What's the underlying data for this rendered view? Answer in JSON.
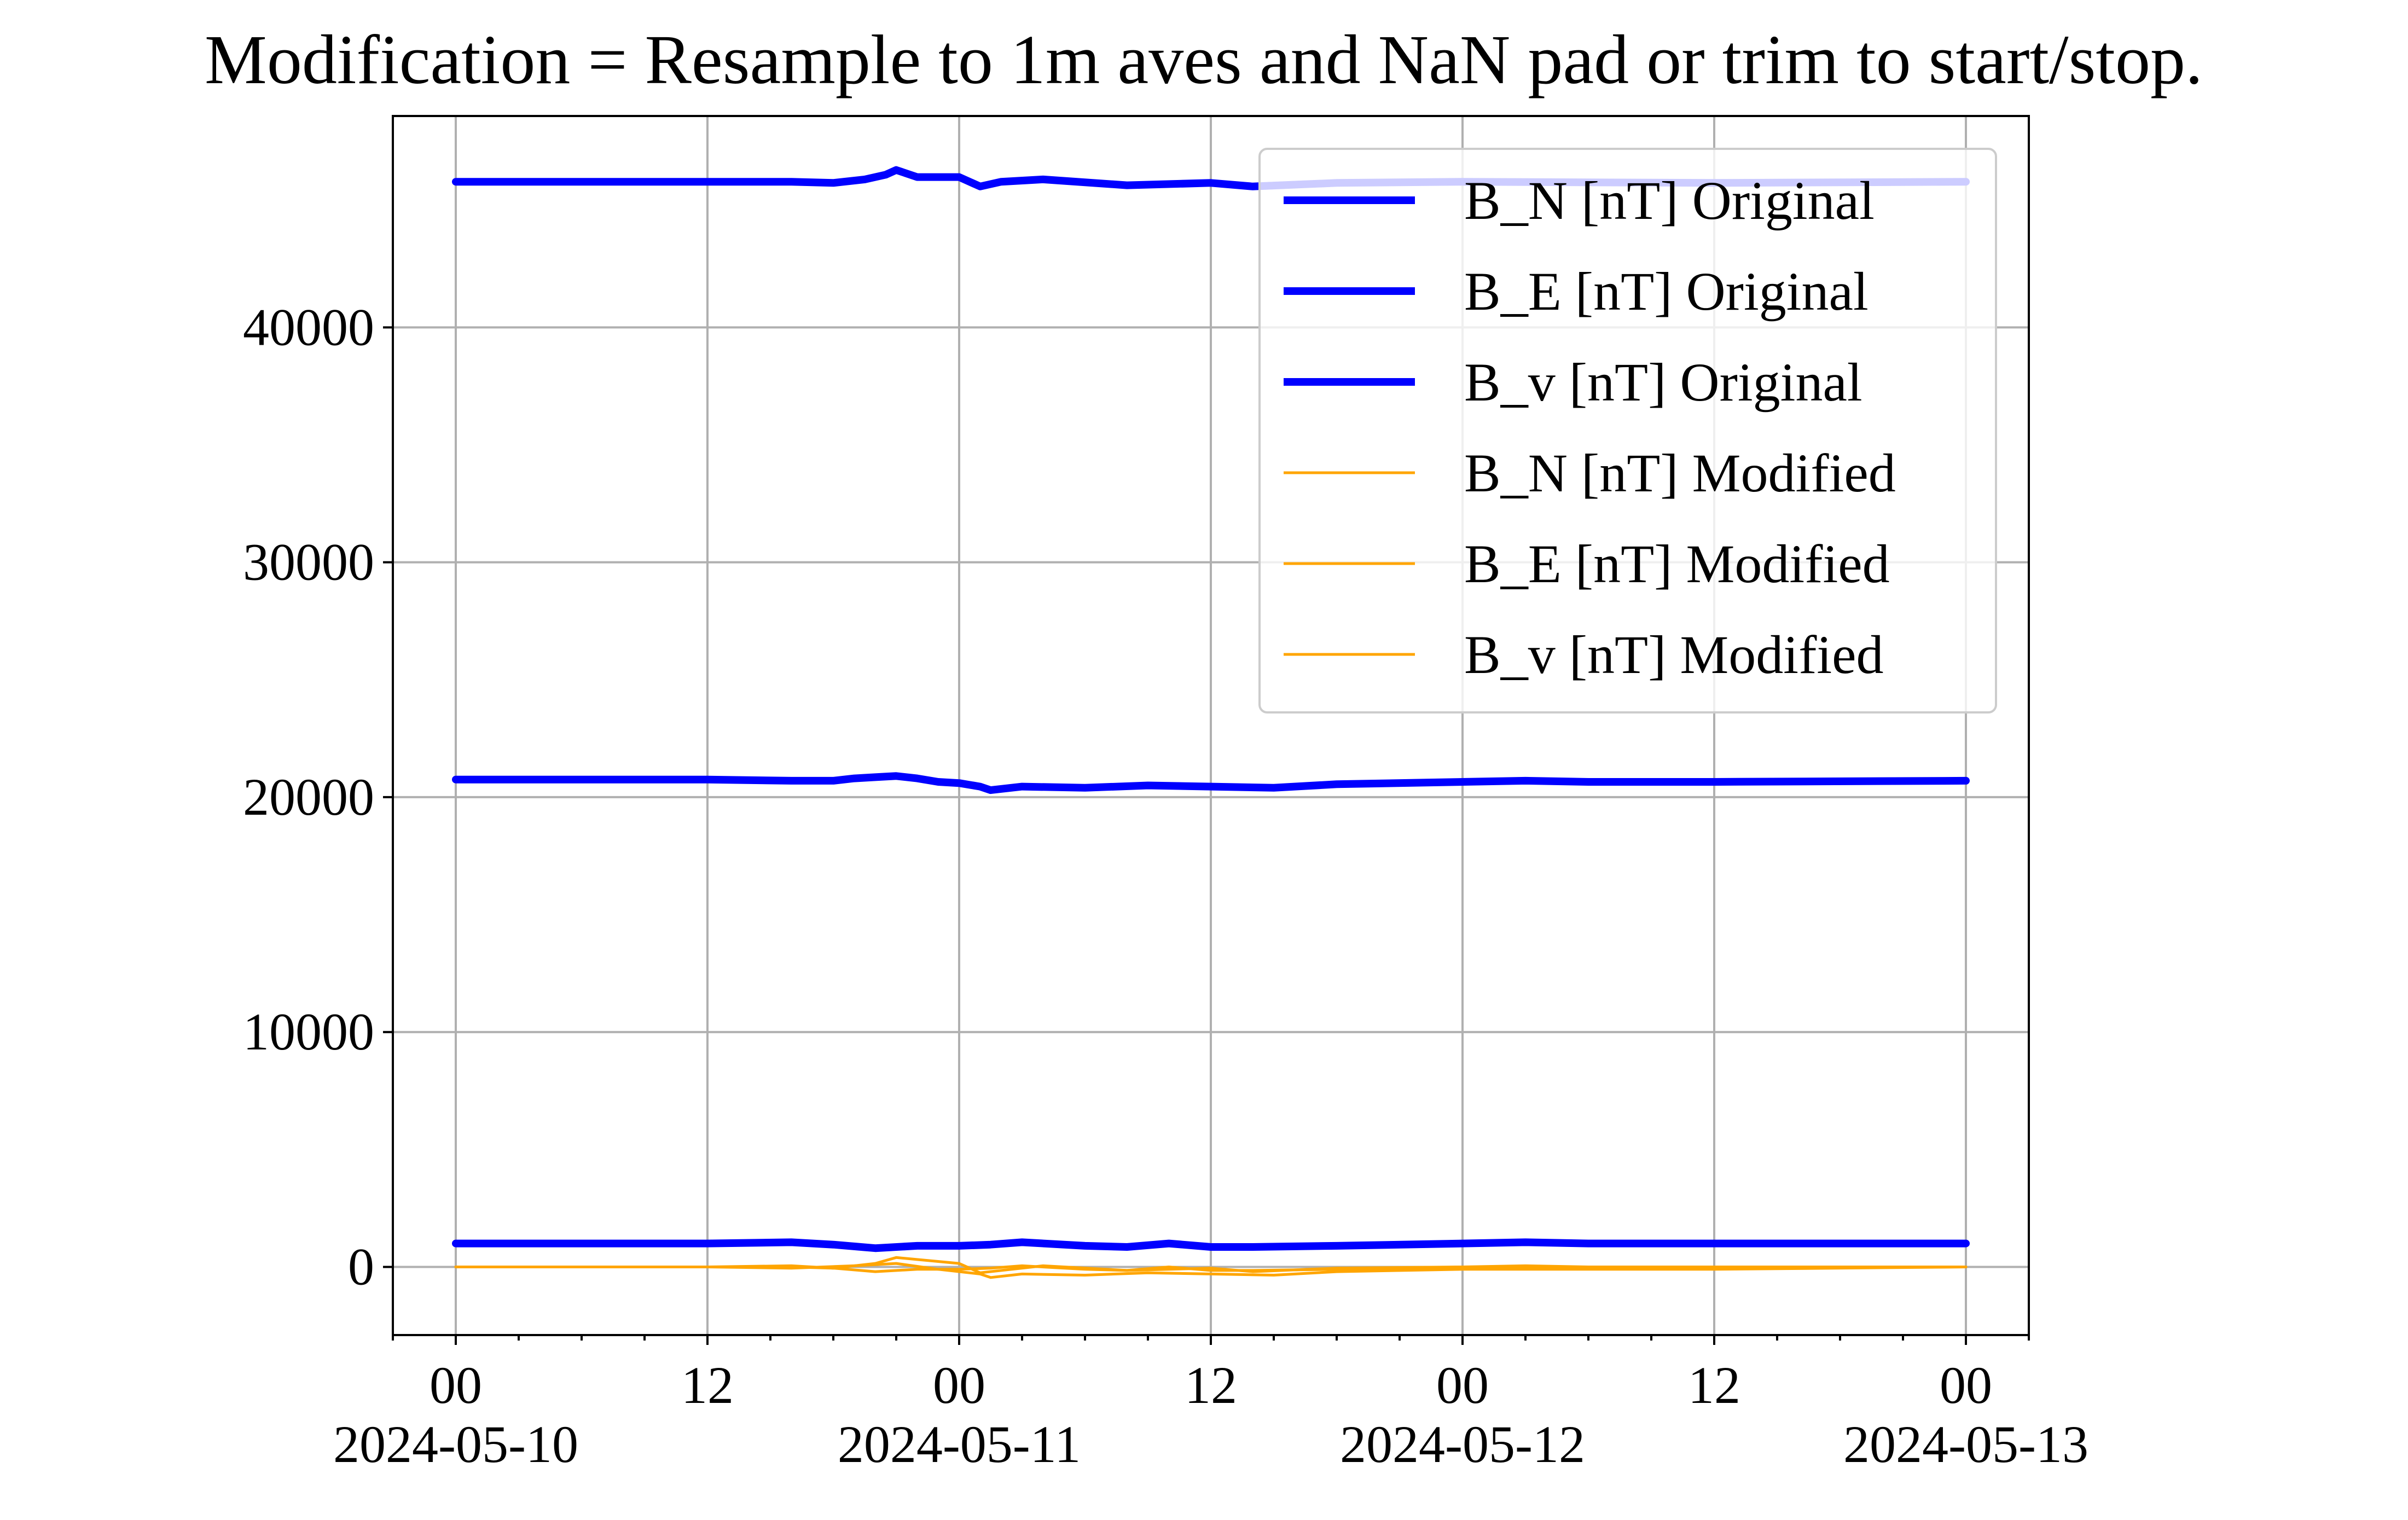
{
  "chart_data": {
    "type": "line",
    "title": "Modification = Resample to 1m aves and NaN pad or trim to start/stop.",
    "xlabel": "",
    "ylabel": "",
    "x_range": [
      "2024-05-09T21:00",
      "2024-05-13T03:00"
    ],
    "ylim": [
      -2900,
      49000
    ],
    "y_ticks": [
      0,
      10000,
      20000,
      30000,
      40000
    ],
    "y_tick_labels": [
      "0",
      "10000",
      "20000",
      "30000",
      "40000"
    ],
    "x_ticks": [
      {
        "t": "2024-05-10T00:00",
        "hour": "00",
        "date": "2024-05-10"
      },
      {
        "t": "2024-05-10T12:00",
        "hour": "12",
        "date": ""
      },
      {
        "t": "2024-05-11T00:00",
        "hour": "00",
        "date": "2024-05-11"
      },
      {
        "t": "2024-05-11T12:00",
        "hour": "12",
        "date": ""
      },
      {
        "t": "2024-05-12T00:00",
        "hour": "00",
        "date": "2024-05-12"
      },
      {
        "t": "2024-05-12T12:00",
        "hour": "12",
        "date": ""
      },
      {
        "t": "2024-05-13T00:00",
        "hour": "00",
        "date": "2024-05-13"
      }
    ],
    "grid": true,
    "legend_position": "top-right",
    "series": [
      {
        "name": "B_N [nT] Original",
        "color": "#0000ff",
        "x": [
          "2024-05-10T00:00",
          "2024-05-10T12:00",
          "2024-05-10T16:00",
          "2024-05-10T18:00",
          "2024-05-10T19:30",
          "2024-05-10T20:30",
          "2024-05-10T21:00",
          "2024-05-10T22:00",
          "2024-05-11T00:00",
          "2024-05-11T01:00",
          "2024-05-11T02:00",
          "2024-05-11T04:00",
          "2024-05-11T08:00",
          "2024-05-11T12:00",
          "2024-05-11T14:00",
          "2024-05-11T18:00",
          "2024-05-12T00:00",
          "2024-05-12T12:00",
          "2024-05-13T00:00"
        ],
        "y": [
          46200,
          46200,
          46200,
          46150,
          46300,
          46500,
          46700,
          46400,
          46400,
          46000,
          46200,
          46300,
          46050,
          46150,
          46000,
          46150,
          46200,
          46150,
          46200
        ]
      },
      {
        "name": "B_E [nT] Original",
        "color": "#0000ff",
        "x": [
          "2024-05-10T00:00",
          "2024-05-10T12:00",
          "2024-05-10T16:00",
          "2024-05-10T18:00",
          "2024-05-10T19:00",
          "2024-05-10T20:00",
          "2024-05-10T21:00",
          "2024-05-10T22:00",
          "2024-05-10T23:00",
          "2024-05-11T00:00",
          "2024-05-11T01:00",
          "2024-05-11T01:30",
          "2024-05-11T03:00",
          "2024-05-11T06:00",
          "2024-05-11T09:00",
          "2024-05-11T12:00",
          "2024-05-11T15:00",
          "2024-05-11T18:00",
          "2024-05-12T00:00",
          "2024-05-12T03:00",
          "2024-05-12T06:00",
          "2024-05-12T12:00",
          "2024-05-13T00:00"
        ],
        "y": [
          20750,
          20750,
          20700,
          20700,
          20800,
          20850,
          20900,
          20800,
          20650,
          20600,
          20450,
          20300,
          20450,
          20400,
          20500,
          20450,
          20400,
          20550,
          20650,
          20700,
          20650,
          20650,
          20700
        ]
      },
      {
        "name": "B_v [nT] Original",
        "color": "#0000ff",
        "x": [
          "2024-05-10T00:00",
          "2024-05-10T12:00",
          "2024-05-10T16:00",
          "2024-05-10T18:00",
          "2024-05-10T20:00",
          "2024-05-10T22:00",
          "2024-05-11T00:00",
          "2024-05-11T01:30",
          "2024-05-11T03:00",
          "2024-05-11T06:00",
          "2024-05-11T08:00",
          "2024-05-11T10:00",
          "2024-05-11T12:00",
          "2024-05-11T14:00",
          "2024-05-11T18:00",
          "2024-05-12T00:00",
          "2024-05-12T03:00",
          "2024-05-12T06:00",
          "2024-05-12T12:00",
          "2024-05-13T00:00"
        ],
        "y": [
          1000,
          1000,
          1050,
          950,
          800,
          900,
          900,
          950,
          1050,
          900,
          850,
          1000,
          850,
          850,
          900,
          1000,
          1050,
          1000,
          1000,
          1000
        ]
      },
      {
        "name": "B_N [nT] Modified",
        "color": "#ffa500",
        "x": [
          "2024-05-10T00:00",
          "2024-05-10T12:00",
          "2024-05-10T16:00",
          "2024-05-10T18:00",
          "2024-05-10T20:00",
          "2024-05-10T21:00",
          "2024-05-11T00:00",
          "2024-05-11T01:00",
          "2024-05-11T04:00",
          "2024-05-11T08:00",
          "2024-05-11T12:00",
          "2024-05-11T14:00",
          "2024-05-11T18:00",
          "2024-05-12T00:00",
          "2024-05-12T12:00",
          "2024-05-13T00:00"
        ],
        "y": [
          0,
          0,
          0,
          -50,
          150,
          400,
          150,
          -250,
          50,
          -150,
          -50,
          -200,
          -50,
          0,
          -50,
          0
        ]
      },
      {
        "name": "B_E [nT] Modified",
        "color": "#ffa500",
        "x": [
          "2024-05-10T00:00",
          "2024-05-10T12:00",
          "2024-05-10T16:00",
          "2024-05-10T19:00",
          "2024-05-10T21:00",
          "2024-05-10T23:00",
          "2024-05-11T01:00",
          "2024-05-11T01:30",
          "2024-05-11T03:00",
          "2024-05-11T06:00",
          "2024-05-11T09:00",
          "2024-05-11T12:00",
          "2024-05-11T15:00",
          "2024-05-11T18:00",
          "2024-05-12T00:00",
          "2024-05-12T06:00",
          "2024-05-12T12:00",
          "2024-05-13T00:00"
        ],
        "y": [
          0,
          0,
          -50,
          50,
          150,
          -100,
          -300,
          -450,
          -300,
          -350,
          -250,
          -300,
          -350,
          -200,
          -100,
          -100,
          -100,
          0
        ]
      },
      {
        "name": "B_v [nT] Modified",
        "color": "#ffa500",
        "x": [
          "2024-05-10T00:00",
          "2024-05-10T12:00",
          "2024-05-10T16:00",
          "2024-05-10T18:00",
          "2024-05-10T20:00",
          "2024-05-10T22:00",
          "2024-05-11T00:00",
          "2024-05-11T01:30",
          "2024-05-11T03:00",
          "2024-05-11T06:00",
          "2024-05-11T08:00",
          "2024-05-11T10:00",
          "2024-05-11T12:00",
          "2024-05-11T14:00",
          "2024-05-11T18:00",
          "2024-05-12T00:00",
          "2024-05-12T03:00",
          "2024-05-12T06:00",
          "2024-05-12T12:00",
          "2024-05-13T00:00"
        ],
        "y": [
          0,
          0,
          50,
          -50,
          -200,
          -100,
          -100,
          -50,
          50,
          -100,
          -150,
          0,
          -150,
          -150,
          -100,
          0,
          50,
          0,
          0,
          0
        ]
      }
    ]
  }
}
